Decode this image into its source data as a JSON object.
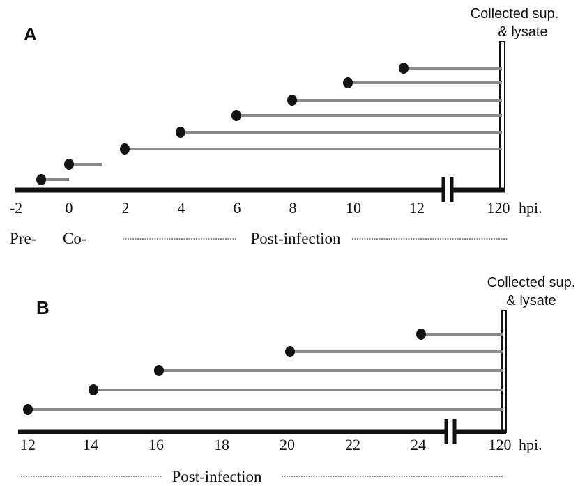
{
  "panels": [
    {
      "letter": "A",
      "collected_line1": "Collected sup.",
      "collected_line2": "& lysate",
      "tick_labels": [
        "-2",
        "0",
        "2",
        "4",
        "6",
        "8",
        "10",
        "12",
        "120"
      ],
      "unit": "hpi.",
      "phase_pre": "Pre-",
      "phase_co": "Co-",
      "phase_post": "Post-infection",
      "treatments": [
        {
          "start_hpi": -1,
          "end_hpi": 0
        },
        {
          "start_hpi": 0,
          "end_hpi": 1.2
        },
        {
          "start_hpi": 2,
          "end_hpi": 120
        },
        {
          "start_hpi": 4,
          "end_hpi": 120
        },
        {
          "start_hpi": 6,
          "end_hpi": 120
        },
        {
          "start_hpi": 8,
          "end_hpi": 120
        },
        {
          "start_hpi": 10,
          "end_hpi": 120
        },
        {
          "start_hpi": 12,
          "end_hpi": 120
        }
      ]
    },
    {
      "letter": "B",
      "collected_line1": "Collected sup.",
      "collected_line2": "& lysate",
      "tick_labels": [
        "12",
        "14",
        "16",
        "18",
        "20",
        "22",
        "24",
        "120"
      ],
      "unit": "hpi.",
      "phase_post": "Post-infection",
      "treatments": [
        {
          "start_hpi": 12,
          "end_hpi": 120
        },
        {
          "start_hpi": 14,
          "end_hpi": 120
        },
        {
          "start_hpi": 16,
          "end_hpi": 120
        },
        {
          "start_hpi": 20,
          "end_hpi": 120
        },
        {
          "start_hpi": 24,
          "end_hpi": 120
        }
      ]
    }
  ]
}
